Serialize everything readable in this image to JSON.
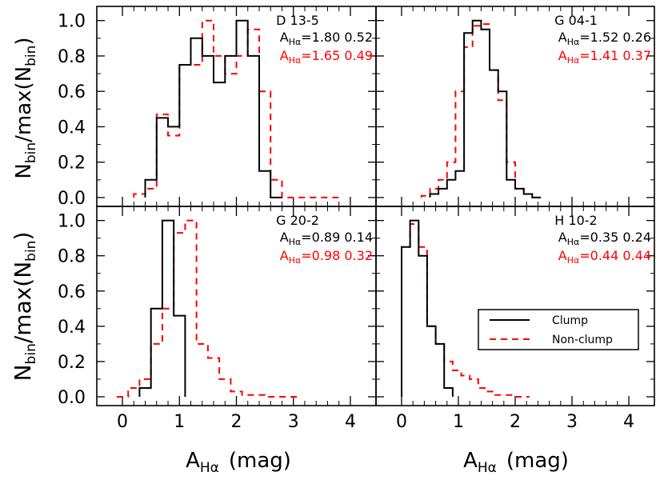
{
  "figure": {
    "ylabel_main": "N",
    "ylabel_sub1": "bin",
    "ylabel_mid": "/max(N",
    "ylabel_sub2": "bin",
    "ylabel_end": ")",
    "xlabel_main": "A",
    "xlabel_sub": "Hα",
    "xlabel_unit": "(mag)",
    "legend": {
      "clump": "Clump",
      "nonclump": "Non-clump",
      "clump_color": "#000000",
      "nonclump_color": "#ff0000"
    }
  },
  "chart_data": [
    {
      "type": "histogram",
      "panel": "top-left",
      "title": "D 13-5",
      "xlim": [
        -0.45,
        4.45
      ],
      "ylim": [
        -0.05,
        1.08
      ],
      "xticks": [
        "0",
        "1",
        "2",
        "3",
        "4"
      ],
      "yticks": [
        "0.0",
        "0.2",
        "0.4",
        "0.6",
        "0.8",
        "1.0"
      ],
      "ann_clump": {
        "A": "A",
        "sub": "Hα",
        "text": "=1.80  0.52"
      },
      "ann_nonclump": {
        "A": "A",
        "sub": "Hα",
        "text": "=1.65  0.49"
      },
      "bin_width": 0.2,
      "clump_edges": [
        0.4,
        0.6,
        0.8,
        1.0,
        1.2,
        1.4,
        1.6,
        1.8,
        2.0,
        2.2,
        2.4,
        2.6,
        2.8
      ],
      "clump_values": [
        0.1,
        0.45,
        0.4,
        0.75,
        0.9,
        0.8,
        0.65,
        0.8,
        1.0,
        0.8,
        0.15,
        0.0
      ],
      "nonclump_edges": [
        0.2,
        0.4,
        0.6,
        0.8,
        1.0,
        1.2,
        1.4,
        1.6,
        1.8,
        2.0,
        2.2,
        2.4,
        2.6,
        2.8,
        3.0,
        3.2,
        3.4,
        3.6,
        3.8
      ],
      "nonclump_values": [
        0.02,
        0.05,
        0.47,
        0.35,
        0.75,
        0.75,
        1.0,
        0.8,
        0.7,
        0.8,
        0.95,
        0.6,
        0.1,
        0.0,
        0.0,
        0.0,
        0.0,
        0.0
      ]
    },
    {
      "type": "histogram",
      "panel": "top-right",
      "title": "G 04-1",
      "xlim": [
        -0.45,
        4.45
      ],
      "ylim": [
        -0.05,
        1.08
      ],
      "xticks": [
        "0",
        "1",
        "2",
        "3",
        "4"
      ],
      "yticks": [],
      "ann_clump": {
        "A": "A",
        "sub": "Hα",
        "text": "=1.52  0.26"
      },
      "ann_nonclump": {
        "A": "A",
        "sub": "Hα",
        "text": "=1.41  0.37"
      },
      "bin_width": 0.15,
      "clump_edges": [
        0.5,
        0.65,
        0.8,
        0.95,
        1.1,
        1.25,
        1.4,
        1.55,
        1.7,
        1.85,
        2.0,
        2.15,
        2.3,
        2.45
      ],
      "clump_values": [
        0.02,
        0.05,
        0.1,
        0.15,
        0.93,
        1.0,
        0.95,
        0.72,
        0.6,
        0.1,
        0.05,
        0.02,
        0.0
      ],
      "nonclump_edges": [
        0.35,
        0.5,
        0.65,
        0.8,
        0.95,
        1.1,
        1.25,
        1.4,
        1.55,
        1.7,
        1.85,
        2.0,
        2.15,
        2.3,
        2.45
      ],
      "nonclump_values": [
        0.01,
        0.05,
        0.1,
        0.2,
        0.6,
        0.85,
        0.97,
        0.98,
        0.72,
        0.55,
        0.2,
        0.05,
        0.02,
        0.0
      ]
    },
    {
      "type": "histogram",
      "panel": "bottom-left",
      "title": "G 20-2",
      "xlim": [
        -0.45,
        4.45
      ],
      "ylim": [
        -0.05,
        1.08
      ],
      "xticks": [
        "0",
        "1",
        "2",
        "3",
        "4"
      ],
      "yticks": [
        "0.0",
        "0.2",
        "0.4",
        "0.6",
        "0.8",
        "1.0"
      ],
      "ann_clump": {
        "A": "A",
        "sub": "Hα",
        "text": "=0.89  0.14"
      },
      "ann_nonclump": {
        "A": "A",
        "sub": "Hα",
        "text": "=0.98  0.32"
      },
      "bin_width": 0.2,
      "clump_edges": [
        0.3,
        0.5,
        0.7,
        0.9,
        1.1
      ],
      "clump_values": [
        0.05,
        0.5,
        1.0,
        0.46
      ],
      "nonclump_edges": [
        -0.1,
        0.1,
        0.3,
        0.5,
        0.7,
        0.9,
        1.1,
        1.3,
        1.5,
        1.7,
        1.9,
        2.1,
        2.3,
        2.5,
        2.7,
        2.9,
        3.1
      ],
      "nonclump_values": [
        0.0,
        0.05,
        0.1,
        0.3,
        0.5,
        0.93,
        1.0,
        0.3,
        0.22,
        0.1,
        0.03,
        0.01,
        0.01,
        0.0,
        0.0,
        0.0
      ]
    },
    {
      "type": "histogram",
      "panel": "bottom-right",
      "title": "H 10-2",
      "xlim": [
        -0.45,
        4.45
      ],
      "ylim": [
        -0.05,
        1.08
      ],
      "xticks": [
        "0",
        "1",
        "2",
        "3",
        "4"
      ],
      "yticks": [],
      "ann_clump": {
        "A": "A",
        "sub": "Hα",
        "text": "=0.35  0.24"
      },
      "ann_nonclump": {
        "A": "A",
        "sub": "Hα",
        "text": "=0.44  0.44"
      },
      "bin_width": 0.15,
      "clump_edges": [
        0.0,
        0.15,
        0.3,
        0.45,
        0.6,
        0.75,
        0.9
      ],
      "clump_values": [
        0.85,
        1.0,
        0.8,
        0.4,
        0.3,
        0.05
      ],
      "nonclump_edges": [
        0.0,
        0.15,
        0.3,
        0.45,
        0.6,
        0.75,
        0.9,
        1.05,
        1.2,
        1.35,
        1.5,
        1.65,
        1.8,
        1.95,
        2.1,
        2.25
      ],
      "nonclump_values": [
        0.85,
        0.98,
        0.85,
        0.4,
        0.3,
        0.2,
        0.15,
        0.12,
        0.1,
        0.05,
        0.03,
        0.01,
        0.01,
        0.0,
        0.0
      ]
    }
  ]
}
